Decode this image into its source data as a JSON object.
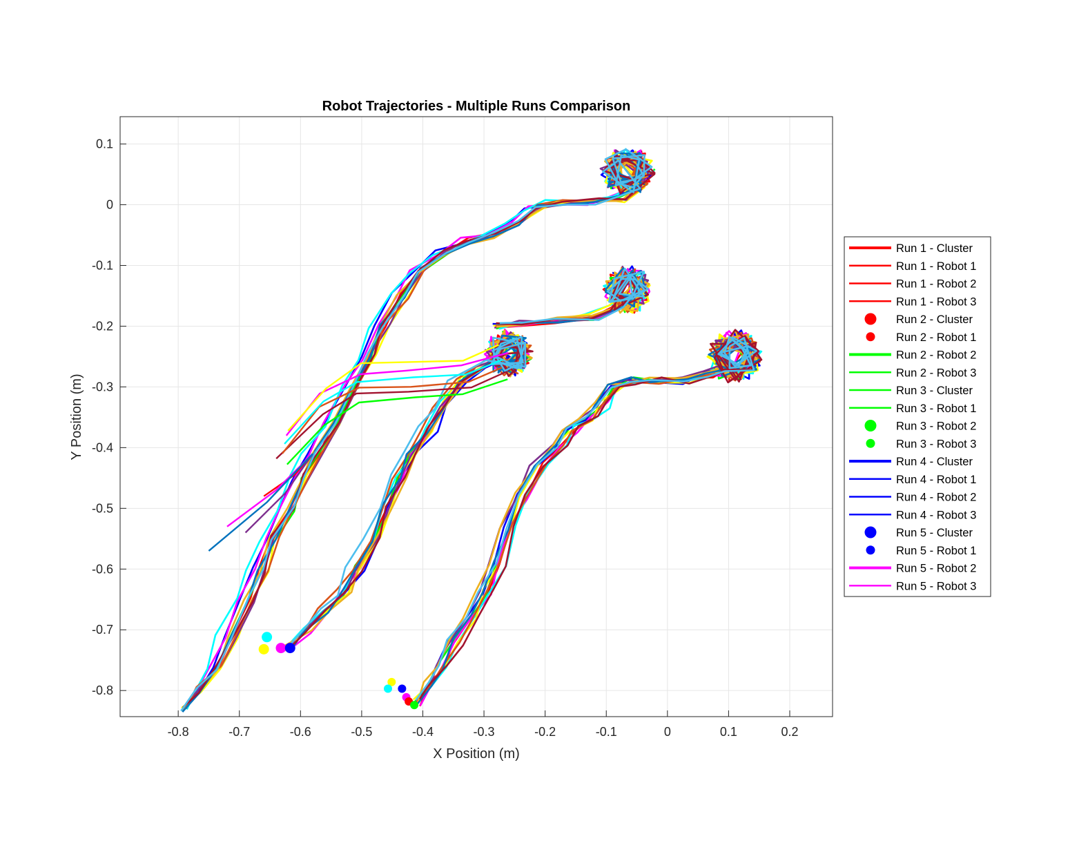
{
  "chart_data": {
    "type": "line",
    "title": "Robot Trajectories - Multiple Runs Comparison",
    "xlabel": "X Position (m)",
    "ylabel": "Y Position (m)",
    "xlim": [
      -0.895,
      0.27
    ],
    "ylim": [
      -0.843,
      0.145
    ],
    "xticks": [
      -0.8,
      -0.7,
      -0.6,
      -0.5,
      -0.4,
      -0.3,
      -0.2,
      -0.1,
      0,
      0.1,
      0.2
    ],
    "xtick_labels": [
      "-0.8",
      "-0.7",
      "-0.6",
      "-0.5",
      "-0.4",
      "-0.3",
      "-0.2",
      "-0.1",
      "0",
      "0.1",
      "0.2"
    ],
    "yticks": [
      0.1,
      0,
      -0.1,
      -0.2,
      -0.3,
      -0.4,
      -0.5,
      -0.6,
      -0.7,
      -0.8
    ],
    "ytick_labels": [
      "0.1",
      "0",
      "-0.1",
      "-0.2",
      "-0.3",
      "-0.4",
      "-0.5",
      "-0.6",
      "-0.7",
      "-0.8"
    ],
    "grid": true,
    "legend_position": "outside-right",
    "legend": [
      {
        "label": "Run 1 - Cluster",
        "kind": "thick-line",
        "color": "#ff0000"
      },
      {
        "label": "Run 1 - Robot 1",
        "kind": "line",
        "color": "#ff0000"
      },
      {
        "label": "Run 1 - Robot 2",
        "kind": "line",
        "color": "#ff0000"
      },
      {
        "label": "Run 1 - Robot 3",
        "kind": "line",
        "color": "#ff0000"
      },
      {
        "label": "Run 2 - Cluster",
        "kind": "big-dot",
        "color": "#ff0000"
      },
      {
        "label": "Run 2 - Robot 1",
        "kind": "dot",
        "color": "#ff0000"
      },
      {
        "label": "Run 2 - Robot 2",
        "kind": "thick-line",
        "color": "#00ff00"
      },
      {
        "label": "Run 2 - Robot 3",
        "kind": "line",
        "color": "#00ff00"
      },
      {
        "label": "Run 3 - Cluster",
        "kind": "line",
        "color": "#00ff00"
      },
      {
        "label": "Run 3 - Robot 1",
        "kind": "line",
        "color": "#00ff00"
      },
      {
        "label": "Run 3 - Robot 2",
        "kind": "big-dot",
        "color": "#00ff00"
      },
      {
        "label": "Run 3 - Robot 3",
        "kind": "dot",
        "color": "#00ff00"
      },
      {
        "label": "Run 4 - Cluster",
        "kind": "thick-line",
        "color": "#0000ff"
      },
      {
        "label": "Run 4 - Robot 1",
        "kind": "line",
        "color": "#0000ff"
      },
      {
        "label": "Run 4 - Robot 2",
        "kind": "line",
        "color": "#0000ff"
      },
      {
        "label": "Run 4 - Robot 3",
        "kind": "line",
        "color": "#0000ff"
      },
      {
        "label": "Run 5 - Cluster",
        "kind": "big-dot",
        "color": "#0000ff"
      },
      {
        "label": "Run 5 - Robot 1",
        "kind": "dot",
        "color": "#0000ff"
      },
      {
        "label": "Run 5 - Robot 2",
        "kind": "thick-line",
        "color": "#ff00ff"
      },
      {
        "label": "Run 5 - Robot 3",
        "kind": "line",
        "color": "#ff00ff"
      }
    ],
    "groups": [
      {
        "id": "A",
        "points": [
          [
            -0.79,
            -0.83
          ],
          [
            -0.77,
            -0.8
          ],
          [
            -0.74,
            -0.76
          ],
          [
            -0.72,
            -0.71
          ],
          [
            -0.69,
            -0.65
          ],
          [
            -0.67,
            -0.6
          ],
          [
            -0.65,
            -0.55
          ],
          [
            -0.62,
            -0.5
          ],
          [
            -0.6,
            -0.45
          ],
          [
            -0.58,
            -0.41
          ],
          [
            -0.55,
            -0.36
          ],
          [
            -0.52,
            -0.3
          ],
          [
            -0.49,
            -0.25
          ],
          [
            -0.47,
            -0.2
          ],
          [
            -0.44,
            -0.15
          ],
          [
            -0.41,
            -0.11
          ],
          [
            -0.37,
            -0.08
          ],
          [
            -0.33,
            -0.06
          ],
          [
            -0.29,
            -0.05
          ],
          [
            -0.25,
            -0.03
          ],
          [
            -0.22,
            -0.005
          ],
          [
            -0.18,
            0.003
          ],
          [
            -0.12,
            0.005
          ],
          [
            -0.08,
            0.01
          ],
          [
            -0.05,
            0.03
          ]
        ],
        "cluster": [
          -0.065,
          0.055
        ],
        "cluster_radius": [
          0.045,
          0.04
        ],
        "tail_starts": [
          [
            -0.66,
            -0.48
          ],
          [
            -0.72,
            -0.53
          ],
          [
            -0.69,
            -0.54
          ],
          [
            -0.75,
            -0.57
          ]
        ]
      },
      {
        "id": "B",
        "points": [
          [
            -0.62,
            -0.73
          ],
          [
            -0.59,
            -0.7
          ],
          [
            -0.56,
            -0.67
          ],
          [
            -0.53,
            -0.64
          ],
          [
            -0.51,
            -0.6
          ],
          [
            -0.48,
            -0.55
          ],
          [
            -0.46,
            -0.5
          ],
          [
            -0.44,
            -0.45
          ],
          [
            -0.42,
            -0.41
          ],
          [
            -0.39,
            -0.37
          ],
          [
            -0.37,
            -0.33
          ],
          [
            -0.34,
            -0.29
          ],
          [
            -0.31,
            -0.27
          ],
          [
            -0.27,
            -0.25
          ]
        ],
        "cluster": [
          -0.26,
          -0.245
        ],
        "cluster_radius": [
          0.04,
          0.04
        ],
        "spur_points": [
          [
            -0.63,
            -0.4
          ],
          [
            -0.56,
            -0.33
          ],
          [
            -0.5,
            -0.295
          ],
          [
            -0.42,
            -0.29
          ],
          [
            -0.33,
            -0.285
          ],
          [
            -0.27,
            -0.26
          ]
        ]
      },
      {
        "id": "C",
        "points": [
          [
            -0.41,
            -0.82
          ],
          [
            -0.39,
            -0.79
          ],
          [
            -0.37,
            -0.76
          ],
          [
            -0.35,
            -0.72
          ],
          [
            -0.32,
            -0.68
          ],
          [
            -0.3,
            -0.64
          ],
          [
            -0.28,
            -0.59
          ],
          [
            -0.26,
            -0.53
          ],
          [
            -0.24,
            -0.48
          ],
          [
            -0.21,
            -0.43
          ],
          [
            -0.18,
            -0.4
          ],
          [
            -0.16,
            -0.37
          ],
          [
            -0.13,
            -0.35
          ],
          [
            -0.11,
            -0.33
          ],
          [
            -0.09,
            -0.3
          ],
          [
            -0.06,
            -0.29
          ],
          [
            -0.02,
            -0.29
          ],
          [
            0.03,
            -0.29
          ],
          [
            0.07,
            -0.28
          ],
          [
            0.1,
            -0.27
          ]
        ],
        "cluster": [
          0.11,
          -0.25
        ],
        "cluster_radius": [
          0.045,
          0.045
        ]
      },
      {
        "id": "D",
        "points": [
          [
            -0.28,
            -0.2
          ],
          [
            -0.24,
            -0.195
          ],
          [
            -0.18,
            -0.19
          ],
          [
            -0.12,
            -0.185
          ],
          [
            -0.08,
            -0.17
          ],
          [
            -0.06,
            -0.15
          ]
        ],
        "cluster": [
          -0.065,
          -0.14
        ],
        "cluster_radius": [
          0.04,
          0.04
        ]
      }
    ],
    "series_colors": [
      "#ff0000",
      "#00ff00",
      "#0000ff",
      "#ff00ff",
      "#00ffff",
      "#ffff00",
      "#7e2f8e",
      "#d95319",
      "#edb120",
      "#0072bd",
      "#a2142f",
      "#4dbeee"
    ],
    "start_markers": [
      {
        "x": -0.655,
        "y": -0.712,
        "color": "#00ffff"
      },
      {
        "x": -0.66,
        "y": -0.732,
        "color": "#ffff00"
      },
      {
        "x": -0.632,
        "y": -0.73,
        "color": "#ff00ff"
      },
      {
        "x": -0.617,
        "y": -0.73,
        "color": "#0000ff"
      },
      {
        "x": -0.451,
        "y": -0.786,
        "color": "#ffff00"
      },
      {
        "x": -0.457,
        "y": -0.797,
        "color": "#00ffff"
      },
      {
        "x": -0.434,
        "y": -0.797,
        "color": "#0000ff"
      },
      {
        "x": -0.427,
        "y": -0.811,
        "color": "#ff00ff"
      },
      {
        "x": -0.423,
        "y": -0.818,
        "color": "#ff0000"
      },
      {
        "x": -0.414,
        "y": -0.824,
        "color": "#00ff00"
      }
    ]
  }
}
